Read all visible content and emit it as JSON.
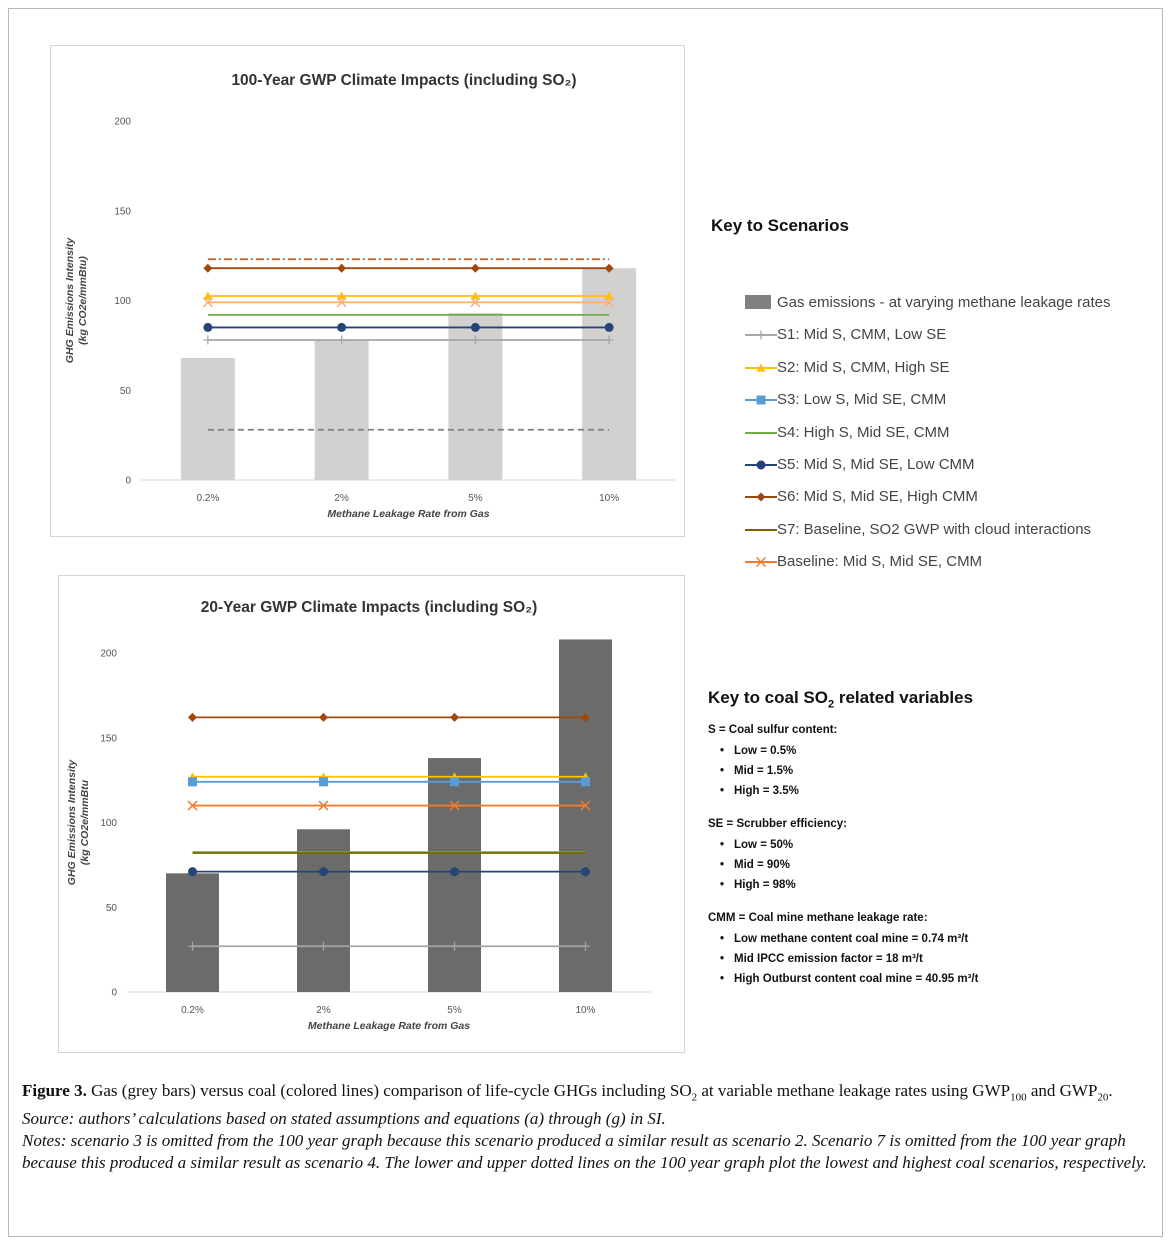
{
  "chart_data": [
    {
      "type": "bar",
      "title": "100-Year GWP Climate Impacts (including SO₂)",
      "xlabel": "Methane Leakage Rate from Gas",
      "ylabel_line1": "GHG Emissions Intensity",
      "ylabel_line2": "(kg CO2e/mmBtu)",
      "categories": [
        "0.2%",
        "2%",
        "5%",
        "10%"
      ],
      "ylim": [
        0,
        200
      ],
      "yticks": [
        "0",
        "50",
        "100",
        "150",
        "200"
      ],
      "bar_color": "#d3d0d0",
      "bars": [
        68,
        78,
        93,
        118
      ],
      "lines": [
        {
          "key": "s1",
          "value": 78,
          "color": "#a6a6a6",
          "marker": "plus",
          "style": "solid"
        },
        {
          "key": "s2",
          "value": 102.5,
          "color": "#ffc000",
          "marker": "triangle",
          "style": "solid"
        },
        {
          "key": "s4",
          "value": 92,
          "color": "#70ad47",
          "marker": "none",
          "style": "solid"
        },
        {
          "key": "s5",
          "value": 85,
          "color": "#264478",
          "marker": "circle",
          "style": "solid"
        },
        {
          "key": "s6",
          "value": 118,
          "color": "#9e480e",
          "marker": "diamond",
          "style": "solid"
        },
        {
          "key": "baseline",
          "value": 99,
          "color": "#f4b183",
          "marker": "x",
          "style": "solid"
        },
        {
          "key": "lowest",
          "value": 28,
          "color": "#7f7f7f",
          "marker": "none",
          "style": "dashed"
        },
        {
          "key": "highest",
          "value": 123,
          "color": "#c55a11",
          "marker": "none",
          "style": "dashdot"
        }
      ]
    },
    {
      "type": "bar",
      "title": "20-Year GWP Climate Impacts (including SO₂)",
      "xlabel": "Methane Leakage Rate from Gas",
      "ylabel_line1": "GHG Emissions Intensity",
      "ylabel_line2": "(kg CO2e/mmBtu",
      "categories": [
        "0.2%",
        "2%",
        "5%",
        "10%"
      ],
      "ylim": [
        0,
        200
      ],
      "yticks": [
        "0",
        "50",
        "100",
        "150",
        "200"
      ],
      "bar_color": "#6b6b6b",
      "bars": [
        70,
        96,
        138,
        208
      ],
      "lines": [
        {
          "key": "s1",
          "value": 27,
          "color": "#a6a6a6",
          "marker": "plus",
          "style": "solid"
        },
        {
          "key": "s2",
          "value": 127,
          "color": "#ffc000",
          "marker": "triangle",
          "style": "solid"
        },
        {
          "key": "s3",
          "value": 124,
          "color": "#5b9bd5",
          "marker": "square",
          "style": "solid"
        },
        {
          "key": "s4",
          "value": 82.5,
          "color": "#70ad47",
          "marker": "none",
          "style": "solid"
        },
        {
          "key": "s7",
          "value": 82,
          "color": "#806000",
          "marker": "none",
          "style": "solid"
        },
        {
          "key": "s5",
          "value": 71,
          "color": "#264478",
          "marker": "circle",
          "style": "solid"
        },
        {
          "key": "s6",
          "value": 162,
          "color": "#9e480e",
          "marker": "diamond",
          "style": "solid"
        },
        {
          "key": "baseline",
          "value": 110,
          "color": "#ed7d31",
          "marker": "x",
          "style": "solid"
        }
      ]
    }
  ],
  "key_title": "Key to Scenarios",
  "legend": [
    {
      "label": "Gas emissions - at varying methane leakage rates",
      "color": "#808080",
      "marker": "bar"
    },
    {
      "label": "S1: Mid S, CMM, Low SE",
      "color": "#a6a6a6",
      "marker": "plus"
    },
    {
      "label": "S2: Mid S, CMM, High SE",
      "color": "#ffc000",
      "marker": "triangle"
    },
    {
      "label": "S3: Low S, Mid SE, CMM",
      "color": "#5b9bd5",
      "marker": "square"
    },
    {
      "label": "S4: High S, Mid SE, CMM",
      "color": "#70ad47",
      "marker": "none"
    },
    {
      "label": "S5: Mid S, Mid SE, Low CMM",
      "color": "#264478",
      "marker": "circle"
    },
    {
      "label": "S6: Mid S, Mid SE, High CMM",
      "color": "#9e480e",
      "marker": "diamond"
    },
    {
      "label": "S7: Baseline,  SO2 GWP with cloud interactions",
      "color": "#806000",
      "marker": "none"
    },
    {
      "label": "Baseline: Mid S, Mid SE, CMM",
      "color": "#ed7d31",
      "marker": "x"
    }
  ],
  "so2_key": {
    "title_pre": "Key to coal SO",
    "title_sub": "2",
    "title_post": " related variables",
    "groups": [
      {
        "head": "S = Coal sulfur content:",
        "items": [
          "Low = 0.5%",
          "Mid = 1.5%",
          "High = 3.5%"
        ]
      },
      {
        "head": "SE = Scrubber efficiency:",
        "items": [
          "Low = 50%",
          "Mid = 90%",
          "High = 98%"
        ]
      },
      {
        "head": "CMM = Coal mine methane leakage rate:",
        "items": [
          "Low methane content coal mine = 0.74 m³/t",
          "Mid IPCC emission factor = 18 m³/t",
          "High Outburst content coal mine = 40.95 m³/t"
        ]
      }
    ]
  },
  "caption": {
    "label": "Figure 3.",
    "text1": " Gas (grey bars) versus coal (colored lines) comparison of life-cycle GHGs including SO",
    "sub1": "2",
    "text2": " at variable methane leakage rates using GWP",
    "sub2": "100",
    "text3": " and GWP",
    "sub3": "20",
    "text4": ".",
    "source": "Source: authors’ calculations based on stated assumptions and equations (a) through (g) in SI.",
    "notes": "Notes: scenario 3 is omitted from the 100 year graph because this scenario produced a similar result as scenario 2. Scenario 7 is omitted from the 100 year graph because this produced a similar result as scenario 4. The lower and upper dotted lines on the 100 year graph plot the lowest and highest coal scenarios, respectively."
  }
}
